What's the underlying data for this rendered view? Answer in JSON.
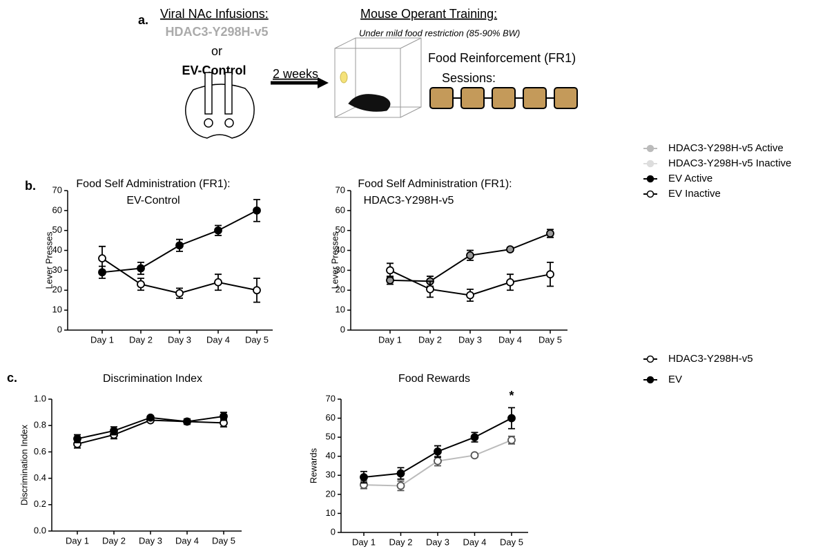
{
  "figure": {
    "panel_labels": [
      "a.",
      "b.",
      "c."
    ],
    "schematic": {
      "infusion_title": "Viral NAc Infusions:",
      "infusion_virus": "HDAC3-Y298H-v5",
      "infusion_or": "or",
      "infusion_control": "EV-Control",
      "delay": "2 weeks",
      "training_title": "Mouse Operant Training:",
      "training_note": "Under mild food restriction (85-90% BW)",
      "reinforcement": "Food Reinforcement (FR1)",
      "sessions": "Sessions:"
    }
  },
  "chart_data": [
    {
      "type": "line",
      "title": "Food Self Administration (FR1):",
      "subtitle": "EV-Control",
      "y_label": "Lever Presses",
      "categories": [
        "Day 1",
        "Day 2",
        "Day 3",
        "Day 4",
        "Day 5"
      ],
      "ylim": [
        0,
        70
      ],
      "yticks": [
        0,
        10,
        20,
        30,
        40,
        50,
        60,
        70
      ],
      "series": [
        {
          "name": "EV Active",
          "color": "#000000",
          "marker_fill": "#000000",
          "values": [
            29,
            31,
            42.5,
            50,
            60
          ],
          "errors": [
            3,
            3,
            3,
            2.5,
            5.5
          ]
        },
        {
          "name": "EV Inactive",
          "color": "#000000",
          "marker_fill": "#ffffff",
          "values": [
            36,
            23,
            18.5,
            24,
            20
          ],
          "errors": [
            6,
            3,
            2.5,
            4,
            6
          ]
        }
      ]
    },
    {
      "type": "line",
      "title": "Food Self Administration (FR1):",
      "subtitle": "HDAC3-Y298H-v5",
      "y_label": "Lever Presses",
      "categories": [
        "Day 1",
        "Day 2",
        "Day 3",
        "Day 4",
        "Day 5"
      ],
      "ylim": [
        0,
        70
      ],
      "yticks": [
        0,
        10,
        20,
        30,
        40,
        50,
        60,
        70
      ],
      "series": [
        {
          "name": "HDAC3-Y298H-v5 Active",
          "color": "#000000",
          "marker_fill": "#999999",
          "legend_color": "#bbbbbb",
          "values": [
            25,
            24.5,
            37.5,
            40.5,
            48.5
          ],
          "errors": [
            2,
            2.5,
            2.5,
            1,
            2
          ]
        },
        {
          "name": "HDAC3-Y298H-v5 Inactive",
          "color": "#000000",
          "marker_fill": "#ffffff",
          "legend_color": "#dddddd",
          "values": [
            30,
            20.5,
            17.5,
            24,
            28
          ],
          "errors": [
            3.5,
            4,
            3,
            4,
            6
          ]
        }
      ]
    },
    {
      "type": "line",
      "title": "Discrimination Index",
      "y_label": "Discrimination Index",
      "categories": [
        "Day 1",
        "Day 2",
        "Day 3",
        "Day 4",
        "Day 5"
      ],
      "ylim": [
        0,
        1
      ],
      "yticks": [
        {
          "value": 0,
          "label": "0.0"
        },
        0.2,
        0.4,
        0.6,
        0.8,
        {
          "value": 1,
          "label": "1.0"
        }
      ],
      "series": [
        {
          "name": "HDAC3-Y298H-v5",
          "color": "#000000",
          "marker_fill": "#ffffff",
          "values": [
            0.66,
            0.73,
            0.84,
            0.83,
            0.82
          ],
          "errors": [
            0.03,
            0.03,
            0.01,
            0.02,
            0.03
          ]
        },
        {
          "name": "EV",
          "color": "#000000",
          "marker_fill": "#000000",
          "values": [
            0.7,
            0.76,
            0.86,
            0.83,
            0.87
          ],
          "errors": [
            0.03,
            0.03,
            0.01,
            0.02,
            0.03
          ]
        }
      ]
    },
    {
      "type": "line",
      "title": "Food Rewards",
      "y_label": "Rewards",
      "annotation": "*",
      "categories": [
        "Day 1",
        "Day 2",
        "Day 3",
        "Day 4",
        "Day 5"
      ],
      "ylim": [
        0,
        70
      ],
      "yticks": [
        0,
        10,
        20,
        30,
        40,
        50,
        60,
        70
      ],
      "series": [
        {
          "name": "HDAC3-Y298H-v5",
          "color": "#bbbbbb",
          "marker_fill": "#ffffff",
          "marker_edge": "#555555",
          "values": [
            25,
            24.5,
            37.5,
            40.5,
            48.5
          ],
          "errors": [
            2,
            2.5,
            2.5,
            1,
            2
          ]
        },
        {
          "name": "EV",
          "color": "#000000",
          "marker_fill": "#000000",
          "values": [
            29,
            31,
            42.5,
            50,
            60
          ],
          "errors": [
            3,
            3,
            3,
            2.5,
            5.5
          ]
        }
      ]
    }
  ]
}
